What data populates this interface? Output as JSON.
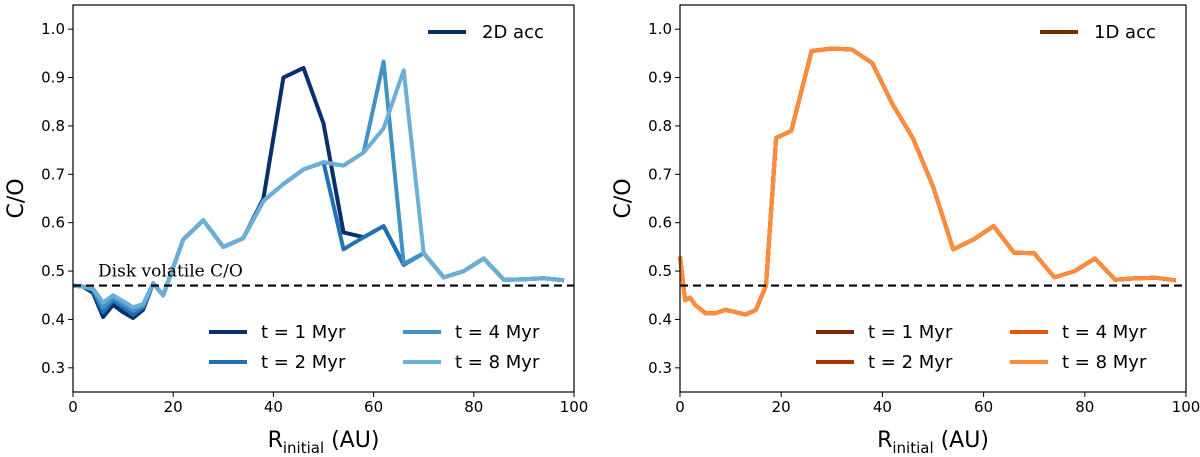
{
  "chart_data": [
    {
      "type": "line",
      "xlabel": "R",
      "xlabel_sub": "initial",
      "xlabel_unit": "(AU)",
      "ylabel": "C/O",
      "xlim": [
        0,
        100
      ],
      "ylim": [
        0.25,
        1.05
      ],
      "xticks": [
        0,
        20,
        40,
        60,
        80,
        100
      ],
      "yticks": [
        0.3,
        0.4,
        0.5,
        0.6,
        0.7,
        0.8,
        0.9,
        1.0
      ],
      "ytick_labels": [
        "0.3",
        "0.4",
        "0.5",
        "0.6",
        "0.7",
        "0.8",
        "0.9",
        "1.0"
      ],
      "reference_line": {
        "y": 0.47,
        "label": "Disk volatile C/O"
      },
      "top_legend": {
        "label": "2D acc",
        "color": "#08306b",
        "placement": "top-right"
      },
      "legend_placement": "lower-right",
      "series": [
        {
          "name": "t = 1 Myr",
          "color": "#08306b",
          "x": [
            0,
            2,
            4,
            6,
            8,
            10,
            12,
            14,
            16,
            18,
            22,
            26,
            30,
            34,
            38,
            42,
            46,
            50,
            54,
            58,
            62,
            66,
            70,
            74,
            78,
            82,
            86,
            90,
            94,
            98
          ],
          "y": [
            0.47,
            0.468,
            0.455,
            0.405,
            0.43,
            0.415,
            0.403,
            0.42,
            0.475,
            0.45,
            0.565,
            0.605,
            0.55,
            0.568,
            0.65,
            0.9,
            0.92,
            0.805,
            0.58,
            0.57,
            0.593,
            0.513,
            0.537,
            0.487,
            0.5,
            0.526,
            0.482,
            0.483,
            0.485,
            0.481
          ]
        },
        {
          "name": "t = 2 Myr",
          "color": "#2171b5",
          "x": [
            0,
            2,
            4,
            6,
            8,
            10,
            12,
            14,
            16,
            18,
            22,
            26,
            30,
            34,
            38,
            42,
            46,
            50,
            54,
            58,
            62,
            66,
            70,
            74,
            78,
            82,
            86,
            90,
            94,
            98
          ],
          "y": [
            0.47,
            0.468,
            0.46,
            0.415,
            0.44,
            0.425,
            0.41,
            0.425,
            0.475,
            0.45,
            0.565,
            0.605,
            0.55,
            0.568,
            0.645,
            0.68,
            0.71,
            0.725,
            0.545,
            0.57,
            0.593,
            0.513,
            0.537,
            0.487,
            0.5,
            0.526,
            0.482,
            0.483,
            0.485,
            0.481
          ]
        },
        {
          "name": "t = 4 Myr",
          "color": "#4292c6",
          "x": [
            0,
            2,
            4,
            6,
            8,
            10,
            12,
            14,
            16,
            18,
            22,
            26,
            30,
            34,
            38,
            42,
            46,
            50,
            54,
            58,
            62,
            66,
            70,
            74,
            78,
            82,
            86,
            90,
            94,
            98
          ],
          "y": [
            0.47,
            0.468,
            0.462,
            0.425,
            0.445,
            0.432,
            0.418,
            0.428,
            0.475,
            0.45,
            0.565,
            0.605,
            0.55,
            0.568,
            0.645,
            0.68,
            0.71,
            0.725,
            0.718,
            0.745,
            0.933,
            0.515,
            0.537,
            0.487,
            0.5,
            0.526,
            0.482,
            0.483,
            0.485,
            0.481
          ]
        },
        {
          "name": "t = 8 Myr",
          "color": "#6baed6",
          "x": [
            0,
            2,
            4,
            6,
            8,
            10,
            12,
            14,
            16,
            18,
            22,
            26,
            30,
            34,
            38,
            42,
            46,
            50,
            54,
            58,
            62,
            66,
            70,
            74,
            78,
            82,
            86,
            90,
            94,
            98
          ],
          "y": [
            0.47,
            0.468,
            0.464,
            0.435,
            0.45,
            0.438,
            0.425,
            0.432,
            0.475,
            0.45,
            0.565,
            0.605,
            0.55,
            0.568,
            0.645,
            0.68,
            0.71,
            0.725,
            0.718,
            0.745,
            0.795,
            0.915,
            0.537,
            0.487,
            0.5,
            0.526,
            0.482,
            0.483,
            0.485,
            0.481
          ]
        }
      ]
    },
    {
      "type": "line",
      "xlabel": "R",
      "xlabel_sub": "initial",
      "xlabel_unit": "(AU)",
      "ylabel": "C/O",
      "xlim": [
        0,
        100
      ],
      "ylim": [
        0.25,
        1.05
      ],
      "xticks": [
        0,
        20,
        40,
        60,
        80,
        100
      ],
      "yticks": [
        0.3,
        0.4,
        0.5,
        0.6,
        0.7,
        0.8,
        0.9,
        1.0
      ],
      "ytick_labels": [
        "0.3",
        "0.4",
        "0.5",
        "0.6",
        "0.7",
        "0.8",
        "0.9",
        "1.0"
      ],
      "reference_line": {
        "y": 0.47,
        "label": ""
      },
      "top_legend": {
        "label": "1D acc",
        "color": "#7f2704",
        "placement": "top-right"
      },
      "legend_placement": "lower-right",
      "series": [
        {
          "name": "t = 1 Myr",
          "color": "#7f2704",
          "x": [
            0,
            1,
            2,
            3,
            5,
            7,
            9,
            11,
            13,
            15,
            17,
            19,
            22,
            26,
            30,
            34,
            38,
            42,
            46,
            50,
            54,
            58,
            62,
            66,
            70,
            74,
            78,
            82,
            86,
            90,
            94,
            98
          ],
          "y": [
            0.53,
            0.44,
            0.445,
            0.43,
            0.413,
            0.413,
            0.42,
            0.415,
            0.41,
            0.42,
            0.47,
            0.775,
            0.79,
            0.955,
            0.96,
            0.958,
            0.93,
            0.845,
            0.775,
            0.675,
            0.545,
            0.565,
            0.593,
            0.538,
            0.537,
            0.487,
            0.5,
            0.526,
            0.482,
            0.485,
            0.486,
            0.481
          ]
        },
        {
          "name": "t = 2 Myr",
          "color": "#a63603",
          "x": [
            0,
            1,
            2,
            3,
            5,
            7,
            9,
            11,
            13,
            15,
            17,
            19,
            22,
            26,
            30,
            34,
            38,
            42,
            46,
            50,
            54,
            58,
            62,
            66,
            70,
            74,
            78,
            82,
            86,
            90,
            94,
            98
          ],
          "y": [
            0.53,
            0.44,
            0.445,
            0.43,
            0.413,
            0.413,
            0.42,
            0.415,
            0.41,
            0.42,
            0.47,
            0.775,
            0.79,
            0.955,
            0.96,
            0.958,
            0.93,
            0.845,
            0.775,
            0.675,
            0.545,
            0.565,
            0.593,
            0.538,
            0.537,
            0.487,
            0.5,
            0.526,
            0.482,
            0.485,
            0.486,
            0.481
          ]
        },
        {
          "name": "t = 4 Myr",
          "color": "#e6550d",
          "x": [
            0,
            1,
            2,
            3,
            5,
            7,
            9,
            11,
            13,
            15,
            17,
            19,
            22,
            26,
            30,
            34,
            38,
            42,
            46,
            50,
            54,
            58,
            62,
            66,
            70,
            74,
            78,
            82,
            86,
            90,
            94,
            98
          ],
          "y": [
            0.53,
            0.44,
            0.445,
            0.43,
            0.413,
            0.413,
            0.42,
            0.415,
            0.41,
            0.42,
            0.47,
            0.775,
            0.79,
            0.955,
            0.96,
            0.958,
            0.93,
            0.845,
            0.775,
            0.675,
            0.545,
            0.565,
            0.593,
            0.538,
            0.537,
            0.487,
            0.5,
            0.526,
            0.482,
            0.485,
            0.486,
            0.481
          ]
        },
        {
          "name": "t = 8 Myr",
          "color": "#fd8d3c",
          "x": [
            0,
            1,
            2,
            3,
            5,
            7,
            9,
            11,
            13,
            15,
            17,
            19,
            22,
            26,
            30,
            34,
            38,
            42,
            46,
            50,
            54,
            58,
            62,
            66,
            70,
            74,
            78,
            82,
            86,
            90,
            94,
            98
          ],
          "y": [
            0.53,
            0.44,
            0.445,
            0.43,
            0.413,
            0.413,
            0.42,
            0.415,
            0.41,
            0.42,
            0.47,
            0.775,
            0.79,
            0.955,
            0.96,
            0.958,
            0.93,
            0.845,
            0.775,
            0.675,
            0.545,
            0.565,
            0.593,
            0.538,
            0.537,
            0.487,
            0.5,
            0.526,
            0.482,
            0.485,
            0.486,
            0.481
          ]
        }
      ]
    }
  ]
}
